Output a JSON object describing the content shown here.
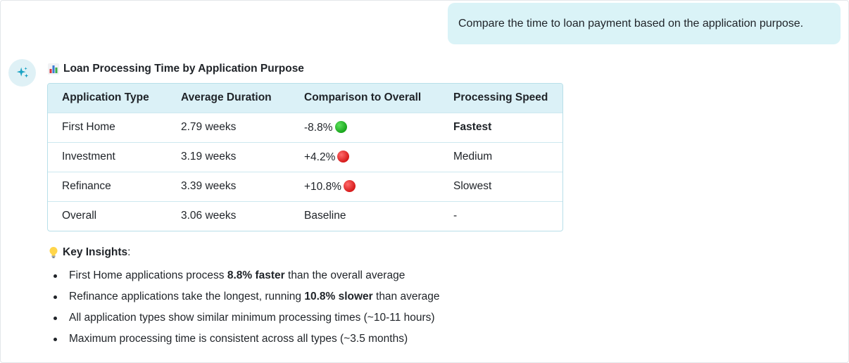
{
  "user_message": "Compare the time to loan payment based on the application purpose.",
  "response": {
    "title_icon": "bar-chart-icon",
    "title": "Loan Processing Time by Application Purpose",
    "table": {
      "headers": [
        "Application Type",
        "Average Duration",
        "Comparison to Overall",
        "Processing Speed"
      ],
      "rows": [
        {
          "type": "First Home",
          "duration": "2.79 weeks",
          "comparison": "-8.8%",
          "indicator": "green",
          "speed": "Fastest",
          "speed_bold": true
        },
        {
          "type": "Investment",
          "duration": "3.19 weeks",
          "comparison": "+4.2%",
          "indicator": "red",
          "speed": "Medium",
          "speed_bold": false
        },
        {
          "type": "Refinance",
          "duration": "3.39 weeks",
          "comparison": "+10.8%",
          "indicator": "red",
          "speed": "Slowest",
          "speed_bold": false
        },
        {
          "type": "Overall",
          "duration": "3.06 weeks",
          "comparison": "Baseline",
          "indicator": "",
          "speed": "-",
          "speed_bold": false
        }
      ]
    },
    "insights": {
      "icon": "lightbulb-icon",
      "heading": "Key Insights",
      "heading_suffix": ":",
      "items": [
        {
          "pre": "First Home applications process ",
          "bold": "8.8% faster",
          "post": " than the overall average"
        },
        {
          "pre": "Refinance applications take the longest, running ",
          "bold": "10.8% slower",
          "post": " than average"
        },
        {
          "pre": "All application types show similar minimum processing times (~10-11 hours)",
          "bold": "",
          "post": ""
        },
        {
          "pre": "Maximum processing time is consistent across all types (~3.5 months)",
          "bold": "",
          "post": ""
        }
      ]
    }
  },
  "colors": {
    "user_bubble": "#daf3f7",
    "table_header": "#dbf1f7",
    "table_border": "#b8dfe9",
    "avatar_bg": "#dff1f6",
    "sparkle": "#1aa3c4",
    "green_dot": "#19a51c",
    "red_dot": "#d61a1a"
  }
}
